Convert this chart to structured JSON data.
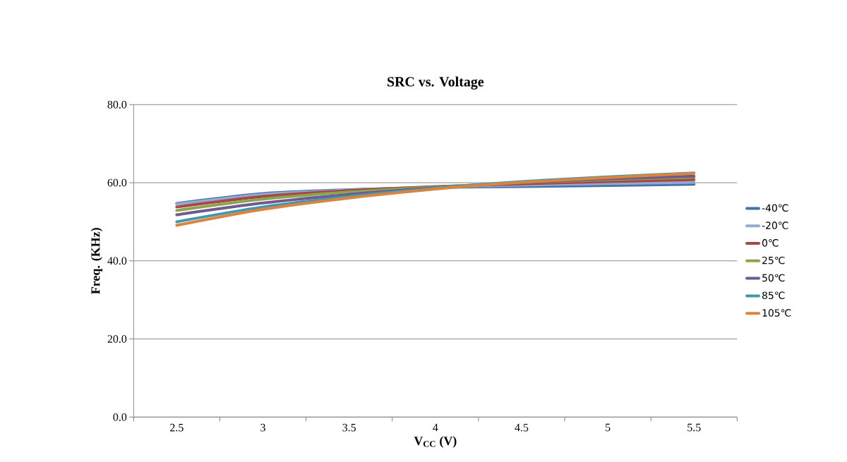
{
  "chart_data": {
    "type": "line",
    "title": "SRC vs. Voltage",
    "xlabel": "V$_{CC}$ (V)",
    "ylabel": "Freq. (KHz)",
    "categories": [
      "2.5",
      "3",
      "3.5",
      "4",
      "4.5",
      "5",
      "5.5"
    ],
    "series": [
      {
        "name": "-40℃",
        "color": "#4572a7",
        "values": [
          54.7,
          57.2,
          58.2,
          58.8,
          59.0,
          59.3,
          59.6
        ]
      },
      {
        "name": "-20℃",
        "color": "#93a9cf",
        "values": [
          54.5,
          57.0,
          58.1,
          58.9,
          59.4,
          59.8,
          60.1
        ]
      },
      {
        "name": "0℃",
        "color": "#aa4643",
        "values": [
          53.8,
          56.5,
          58.0,
          59.0,
          59.7,
          60.3,
          60.8
        ]
      },
      {
        "name": "25℃",
        "color": "#89a54e",
        "values": [
          52.9,
          55.8,
          57.6,
          58.9,
          60.0,
          60.8,
          61.4
        ]
      },
      {
        "name": "50℃",
        "color": "#71588f",
        "values": [
          51.8,
          54.8,
          57.0,
          58.7,
          60.0,
          61.0,
          61.7
        ]
      },
      {
        "name": "85℃",
        "color": "#4198af",
        "values": [
          50.0,
          53.8,
          56.5,
          58.6,
          60.3,
          61.5,
          62.5
        ]
      },
      {
        "name": "105℃",
        "color": "#db843d",
        "values": [
          49.1,
          53.2,
          56.1,
          58.4,
          60.1,
          61.3,
          62.4
        ]
      }
    ],
    "ylim": [
      0,
      80
    ],
    "yticks": [
      {
        "value": 0,
        "label": "0.0"
      },
      {
        "value": 20,
        "label": "20.0"
      },
      {
        "value": 40,
        "label": "40.0"
      },
      {
        "value": 60,
        "label": "60.0"
      },
      {
        "value": 80,
        "label": "80.0"
      }
    ],
    "grid": "y",
    "legend": "right",
    "marker": "none",
    "line_style": "solid"
  }
}
